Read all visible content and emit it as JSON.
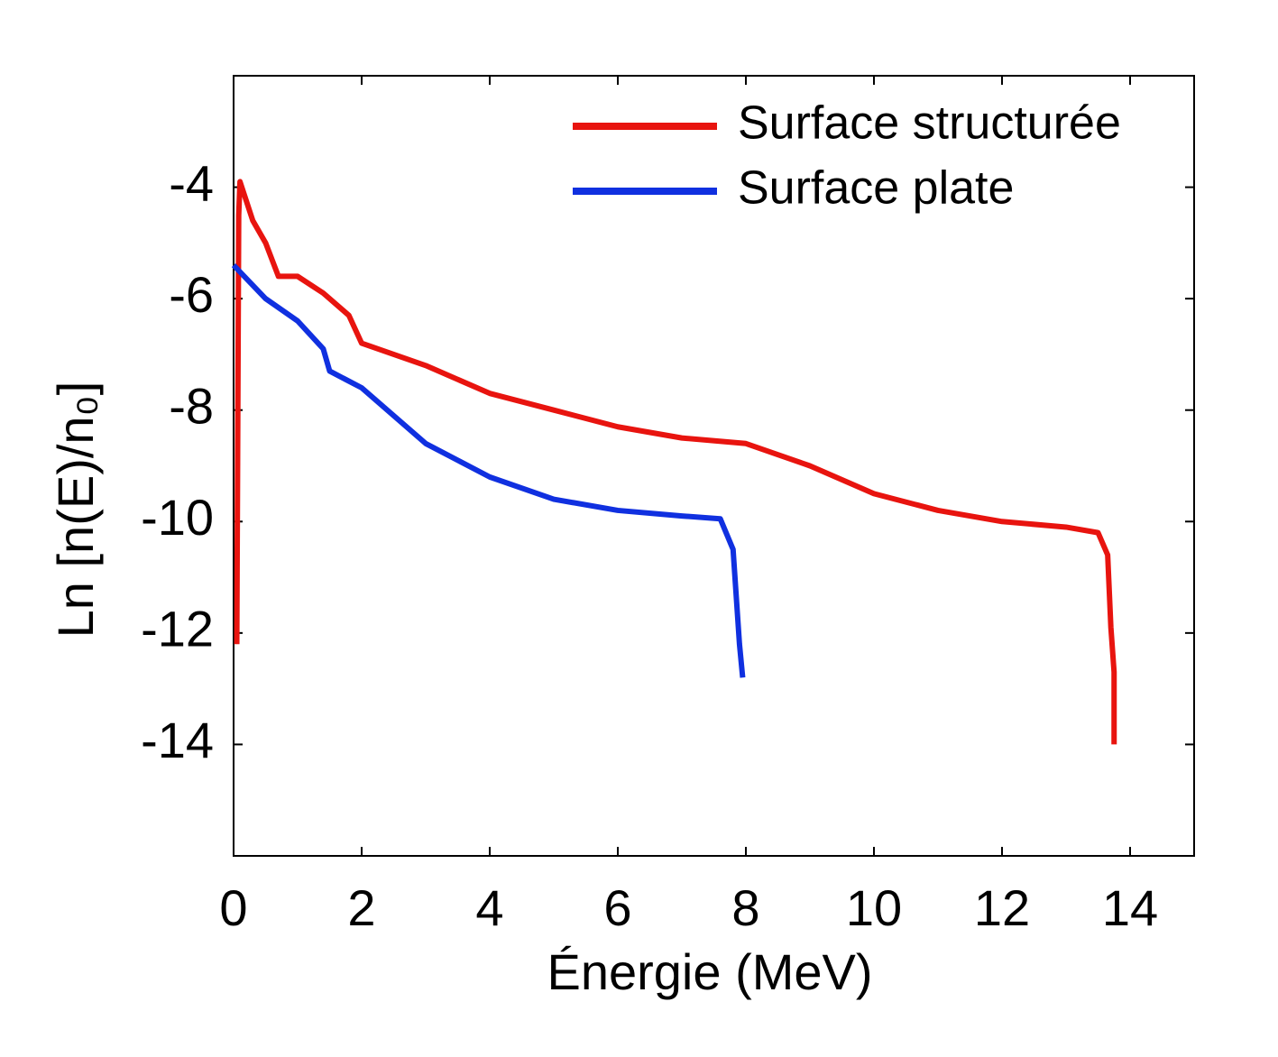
{
  "chart_data": {
    "type": "line",
    "xlabel": "Énergie (MeV)",
    "ylabel": "Ln [n(E)/n₀]",
    "xlim": [
      0,
      15
    ],
    "xticks": [
      0,
      2,
      4,
      6,
      8,
      10,
      12,
      14
    ],
    "ylim": [
      -16,
      -2
    ],
    "yticks": [
      -4,
      -6,
      -8,
      -10,
      -12,
      -14
    ],
    "legend": "upper right",
    "series": [
      {
        "name": "Surface structurée",
        "color": "#e8140f",
        "x": [
          0.05,
          0.08,
          0.1,
          0.3,
          0.5,
          0.7,
          1,
          1.4,
          1.8,
          2,
          3,
          4,
          5,
          6,
          7,
          8,
          9,
          10,
          11,
          12,
          13,
          13.5,
          13.65,
          13.7,
          13.75,
          13.75
        ],
        "values": [
          -12.2,
          -4.5,
          -3.9,
          -4.6,
          -5.0,
          -5.6,
          -5.6,
          -5.9,
          -6.3,
          -6.8,
          -7.2,
          -7.7,
          -8.0,
          -8.3,
          -8.5,
          -8.6,
          -9.0,
          -9.5,
          -9.8,
          -10.0,
          -10.1,
          -10.2,
          -10.6,
          -11.9,
          -12.7,
          -14.0
        ]
      },
      {
        "name": "Surface plate",
        "color": "#1030e0",
        "x": [
          0,
          0.5,
          1,
          1.4,
          1.5,
          2,
          3,
          4,
          5,
          6,
          7,
          7.6,
          7.8,
          7.9,
          7.95
        ],
        "values": [
          -5.4,
          -6.0,
          -6.4,
          -6.9,
          -7.3,
          -7.6,
          -8.6,
          -9.2,
          -9.6,
          -9.8,
          -9.9,
          -9.95,
          -10.5,
          -12.2,
          -12.8
        ]
      }
    ]
  }
}
